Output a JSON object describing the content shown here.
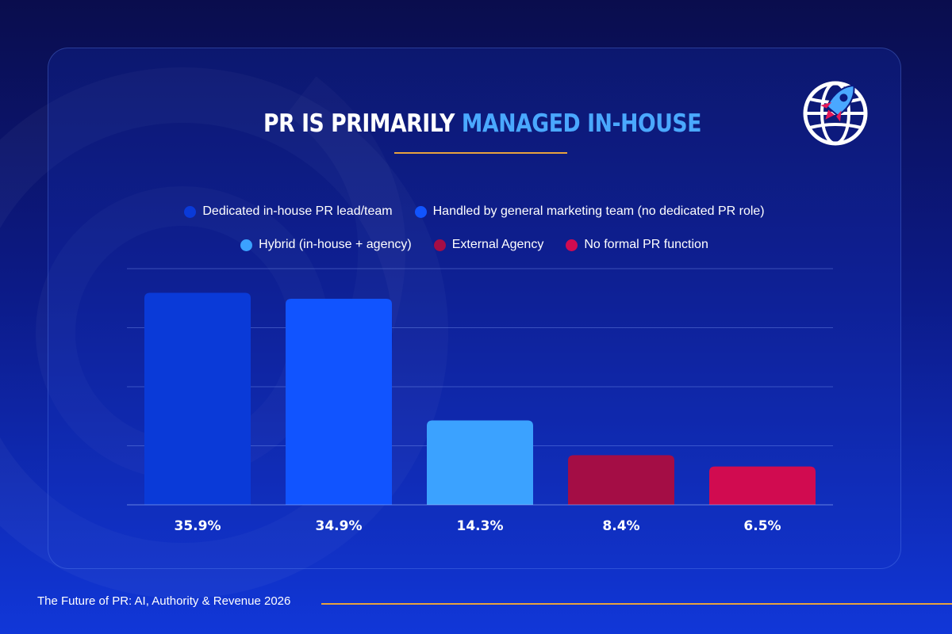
{
  "title": {
    "part1": "PR IS PRIMARILY ",
    "accent": "MANAGED IN-HOUSE"
  },
  "logo": {
    "icon": "globe-rocket-icon"
  },
  "colors": {
    "accent": "#4aa8ff",
    "underline": "#e8a33d"
  },
  "chart_data": {
    "type": "bar",
    "title": "PR IS PRIMARILY MANAGED IN-HOUSE",
    "categories": [
      "Dedicated in-house PR lead/team",
      "Handled by general marketing team (no dedicated PR role)",
      "Hybrid (in-house + agency)",
      "External Agency",
      "No formal PR function"
    ],
    "values": [
      35.9,
      34.9,
      14.3,
      8.4,
      6.5
    ],
    "labels": [
      "35.9%",
      "34.9%",
      "14.3%",
      "8.4%",
      "6.5%"
    ],
    "colors": [
      "#0a3ad8",
      "#1154ff",
      "#3ba2ff",
      "#a40d45",
      "#d10b50"
    ],
    "ylim": [
      0,
      40
    ],
    "grid": true,
    "legend": "top",
    "xlabel": "",
    "ylabel": ""
  },
  "footer": {
    "source": "The Future of PR: AI, Authority & Revenue 2026"
  }
}
